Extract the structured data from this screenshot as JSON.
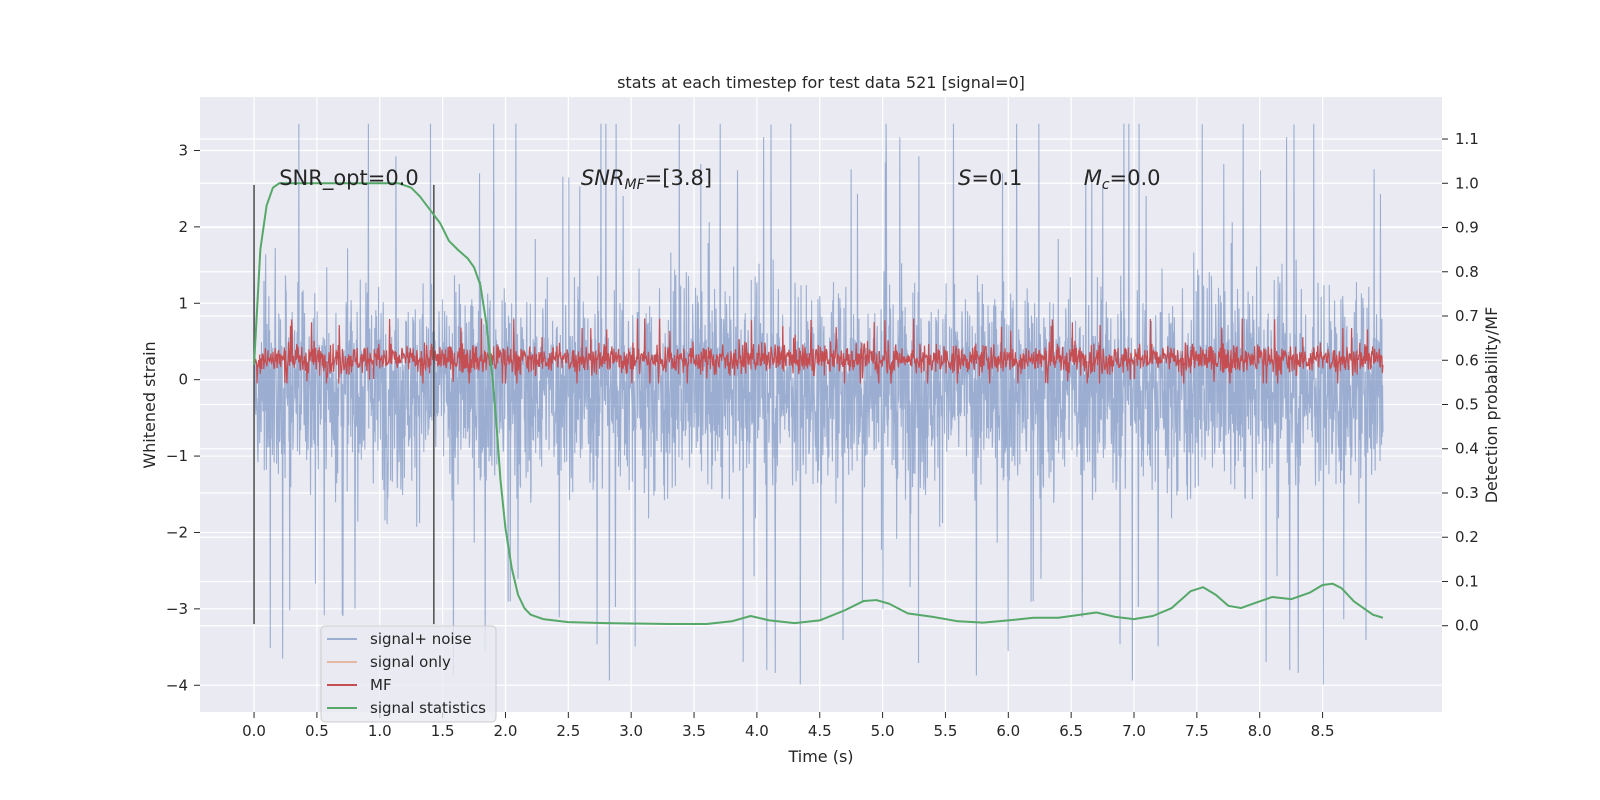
{
  "chart_data": {
    "type": "line",
    "title": "stats at each timestep for test data 521 [signal=0]",
    "xlabel": "Time (s)",
    "ylabel": "Whitened strain",
    "y2label": "Detection probability/MF",
    "xlim": [
      -0.43,
      9.45
    ],
    "ylim": [
      -4.35,
      3.7
    ],
    "y2lim": [
      -0.195,
      1.195
    ],
    "xticks": [
      0.0,
      0.5,
      1.0,
      1.5,
      2.0,
      2.5,
      3.0,
      3.5,
      4.0,
      4.5,
      5.0,
      5.5,
      6.0,
      6.5,
      7.0,
      7.5,
      8.0,
      8.5
    ],
    "xtick_labels": [
      "0.0",
      "0.5",
      "1.0",
      "1.5",
      "2.0",
      "2.5",
      "3.0",
      "3.5",
      "4.0",
      "4.5",
      "5.0",
      "5.5",
      "6.0",
      "6.5",
      "7.0",
      "7.5",
      "8.0",
      "8.5"
    ],
    "yticks": [
      -4,
      -3,
      -2,
      -1,
      0,
      1,
      2,
      3
    ],
    "ytick_labels": [
      "−4",
      "−3",
      "−2",
      "−1",
      "0",
      "1",
      "2",
      "3"
    ],
    "y2ticks": [
      0.0,
      0.1,
      0.2,
      0.3,
      0.4,
      0.5,
      0.6,
      0.7,
      0.8,
      0.9,
      1.0,
      1.1
    ],
    "y2tick_labels": [
      "0.0",
      "0.1",
      "0.2",
      "0.3",
      "0.4",
      "0.5",
      "0.6",
      "0.7",
      "0.8",
      "0.9",
      "1.0",
      "1.1"
    ],
    "grid": true,
    "legend_position": "lower-left",
    "series": [
      {
        "name": "signal+ noise",
        "color": "#4c72b0",
        "axis": "left",
        "style": "noise-band",
        "x_range": [
          0.0,
          8.98
        ],
        "y_range": [
          -4.0,
          3.35
        ],
        "body_range": [
          -1.3,
          1.1
        ]
      },
      {
        "name": "signal only",
        "color": "#dd8452",
        "axis": "left",
        "x": [],
        "y": []
      },
      {
        "name": "MF",
        "color": "#c44e52",
        "axis": "left",
        "style": "noise-band",
        "x_range": [
          0.0,
          8.98
        ],
        "y_range": [
          -0.05,
          0.8
        ],
        "body_range": [
          0.1,
          0.45
        ]
      },
      {
        "name": "signal statistics",
        "color": "#55a868",
        "axis": "right",
        "x": [
          0.0,
          0.05,
          0.1,
          0.15,
          0.2,
          0.3,
          0.5,
          0.8,
          1.0,
          1.15,
          1.25,
          1.32,
          1.4,
          1.48,
          1.55,
          1.62,
          1.7,
          1.75,
          1.8,
          1.85,
          1.9,
          1.93,
          1.96,
          2.0,
          2.05,
          2.1,
          2.15,
          2.2,
          2.3,
          2.5,
          2.8,
          3.0,
          3.3,
          3.6,
          3.8,
          3.95,
          4.1,
          4.3,
          4.5,
          4.7,
          4.85,
          4.95,
          5.05,
          5.2,
          5.4,
          5.6,
          5.8,
          6.0,
          6.2,
          6.4,
          6.55,
          6.7,
          6.85,
          7.0,
          7.15,
          7.3,
          7.45,
          7.55,
          7.65,
          7.75,
          7.85,
          7.95,
          8.1,
          8.25,
          8.4,
          8.5,
          8.58,
          8.65,
          8.75,
          8.9,
          8.98
        ],
        "y": [
          0.59,
          0.85,
          0.95,
          0.99,
          1.0,
          1.0,
          1.0,
          1.0,
          1.0,
          1.0,
          0.99,
          0.97,
          0.94,
          0.91,
          0.87,
          0.85,
          0.83,
          0.81,
          0.77,
          0.68,
          0.55,
          0.45,
          0.33,
          0.22,
          0.13,
          0.07,
          0.04,
          0.025,
          0.015,
          0.008,
          0.006,
          0.005,
          0.004,
          0.004,
          0.01,
          0.022,
          0.012,
          0.006,
          0.012,
          0.035,
          0.056,
          0.058,
          0.05,
          0.028,
          0.02,
          0.01,
          0.007,
          0.012,
          0.018,
          0.018,
          0.024,
          0.03,
          0.02,
          0.015,
          0.022,
          0.04,
          0.078,
          0.087,
          0.07,
          0.045,
          0.04,
          0.05,
          0.065,
          0.06,
          0.075,
          0.092,
          0.095,
          0.085,
          0.055,
          0.025,
          0.018
        ]
      }
    ],
    "vlines": [
      {
        "x": 0.0,
        "ymin": -3.2,
        "ymax": 2.55,
        "color": "#555555"
      },
      {
        "x": 1.43,
        "ymin": -3.2,
        "ymax": 2.55,
        "color": "#555555"
      }
    ],
    "annotations": [
      {
        "text": "SNR_opt=0.0",
        "x": 0.2,
        "y": 2.55
      },
      {
        "text_main": "SNR",
        "text_sub": "MF",
        "text_rest": "=[3.8]",
        "x": 2.6,
        "y": 2.55
      },
      {
        "text_main": "S",
        "text_rest": "=0.1",
        "x": 5.6,
        "y": 2.55
      },
      {
        "text_main": "M",
        "text_sub": "c",
        "text_rest": "=0.0",
        "x": 6.6,
        "y": 2.55
      }
    ]
  }
}
